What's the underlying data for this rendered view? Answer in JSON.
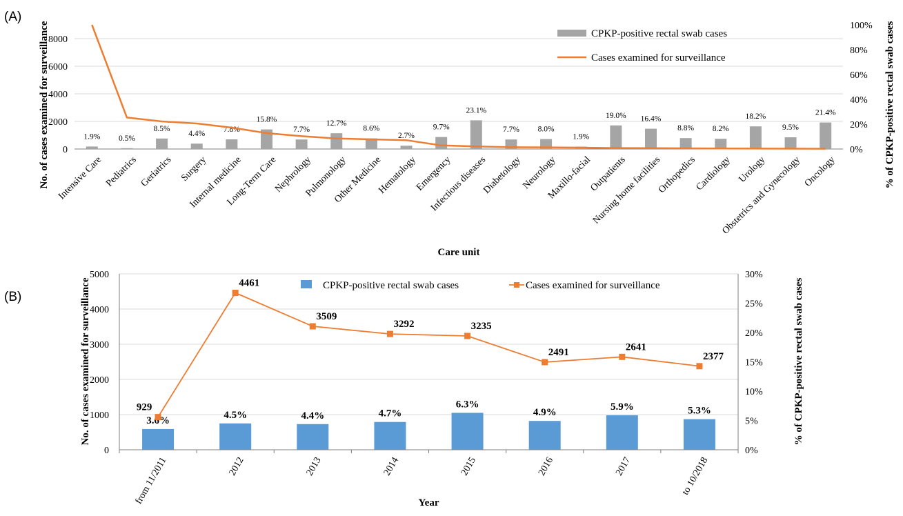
{
  "panel_labels": {
    "a": "(A)",
    "b": "(B)"
  },
  "colors": {
    "gray_bar": "#a5a5a5",
    "blue_bar": "#5b9bd5",
    "orange_line": "#ed7d31",
    "grid": "#d9d9d9",
    "axis": "#7f7f7f"
  },
  "chart_data": [
    {
      "type": "bar",
      "panel": "(A)",
      "title": "",
      "xlabel": "Care unit",
      "ylabel": "No. of  cases examined for surveillance",
      "y2label": "% of CPKP-positive rectal swab cases",
      "ylim": [
        0,
        9000
      ],
      "y_ticks": [
        "0",
        "2000",
        "4000",
        "6000",
        "8000"
      ],
      "y_tick_values": [
        0,
        2000,
        4000,
        6000,
        8000
      ],
      "y2lim": [
        0,
        100
      ],
      "y2_ticks": [
        "0%",
        "20%",
        "40%",
        "60%",
        "80%",
        "100%"
      ],
      "y2_tick_values": [
        0,
        20,
        40,
        60,
        80,
        100
      ],
      "grid": true,
      "legend_position": "top-right",
      "categories": [
        "Intensive Care",
        "Pediatrics",
        "Geriatrics",
        "Surgery",
        "Internal medicine",
        "Long-Term Care",
        "Nephrology",
        "Pulmonology",
        "Other Medicine",
        "Hematology",
        "Emergency",
        "Infectious diseases",
        "Diabetology",
        "Neurology",
        "Maxillo-facial",
        "Outpatients",
        "Nursing home facilities",
        "Orthopedics",
        "Cardiology",
        "Urology",
        "Obstetrics and Gynecology",
        "Oncology"
      ],
      "series": [
        {
          "name": "CPKP-positive rectal swab cases",
          "kind": "bar",
          "axis": "left",
          "values": [
            180,
            60,
            760,
            390,
            700,
            1420,
            690,
            1140,
            770,
            240,
            870,
            2080,
            690,
            720,
            170,
            1710,
            1470,
            790,
            740,
            1640,
            850,
            1920
          ],
          "labels": [
            "1.9%",
            "0.5%",
            "8.5%",
            "4.4%",
            "7.8%",
            "15.8%",
            "7.7%",
            "12.7%",
            "8.6%",
            "2.7%",
            "9.7%",
            "23.1%",
            "7.7%",
            "8.0%",
            "1.9%",
            "19.0%",
            "16.4%",
            "8.8%",
            "8.2%",
            "18.2%",
            "9.5%",
            "21.4%"
          ]
        },
        {
          "name": "Cases examined for surveillance",
          "kind": "line",
          "axis": "left",
          "values": [
            9600,
            2280,
            2000,
            1850,
            1550,
            1150,
            930,
            760,
            700,
            640,
            260,
            190,
            130,
            120,
            100,
            70,
            60,
            50,
            40,
            30,
            25,
            20
          ]
        }
      ]
    },
    {
      "type": "bar",
      "panel": "(B)",
      "title": "",
      "xlabel": "Year",
      "ylabel": "No. of  cases examined for surveillance",
      "y2label": "% of CPKP-positive rectal swab cases",
      "ylim": [
        0,
        5000
      ],
      "y_ticks": [
        "0",
        "1000",
        "2000",
        "3000",
        "4000",
        "5000"
      ],
      "y_tick_values": [
        0,
        1000,
        2000,
        3000,
        4000,
        5000
      ],
      "y2lim": [
        0,
        30
      ],
      "y2_ticks": [
        "0%",
        "5%",
        "10%",
        "15%",
        "20%",
        "25%",
        "30%"
      ],
      "y2_tick_values": [
        0,
        5,
        10,
        15,
        20,
        25,
        30
      ],
      "grid": true,
      "legend_position": "top",
      "categories": [
        "from 11/2011",
        "2012",
        "2013",
        "2014",
        "2015",
        "2016",
        "2017",
        "to 10/2018"
      ],
      "series": [
        {
          "name": "CPKP-positive rectal swab cases",
          "kind": "bar",
          "axis": "left",
          "values": [
            590,
            750,
            730,
            790,
            1050,
            820,
            980,
            870
          ],
          "labels": [
            "3.6%",
            "4.5%",
            "4.4%",
            "4.7%",
            "6.3%",
            "4.9%",
            "5.9%",
            "5.3%"
          ]
        },
        {
          "name": "Cases examined for surveillance",
          "kind": "line",
          "axis": "left",
          "values": [
            929,
            4461,
            3509,
            3292,
            3235,
            2491,
            2641,
            2377
          ],
          "labels": [
            "929",
            "4461",
            "3509",
            "3292",
            "3235",
            "2491",
            "2641",
            "2377"
          ]
        }
      ]
    }
  ]
}
